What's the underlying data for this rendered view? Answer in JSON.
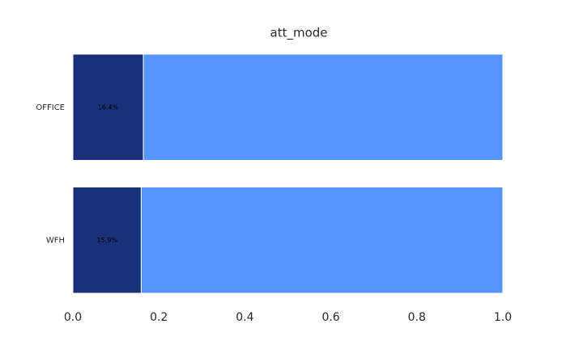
{
  "chart_data": {
    "type": "stacked-barh",
    "title": "att_mode",
    "categories": [
      "OFFICE",
      "WFH"
    ],
    "series": [
      {
        "color": "#18317a",
        "values": [
          0.164,
          0.159
        ],
        "value_labels": [
          "16.4%",
          "15.9%"
        ]
      },
      {
        "color": "#5694fe",
        "values": [
          0.836,
          0.841
        ]
      }
    ],
    "xlim": [
      0,
      1
    ],
    "xticks": [
      {
        "value": 0,
        "label": "0.0"
      },
      0.2,
      0.4,
      0.6,
      0.8,
      {
        "value": 1,
        "label": "1.0"
      }
    ],
    "grid": false
  }
}
